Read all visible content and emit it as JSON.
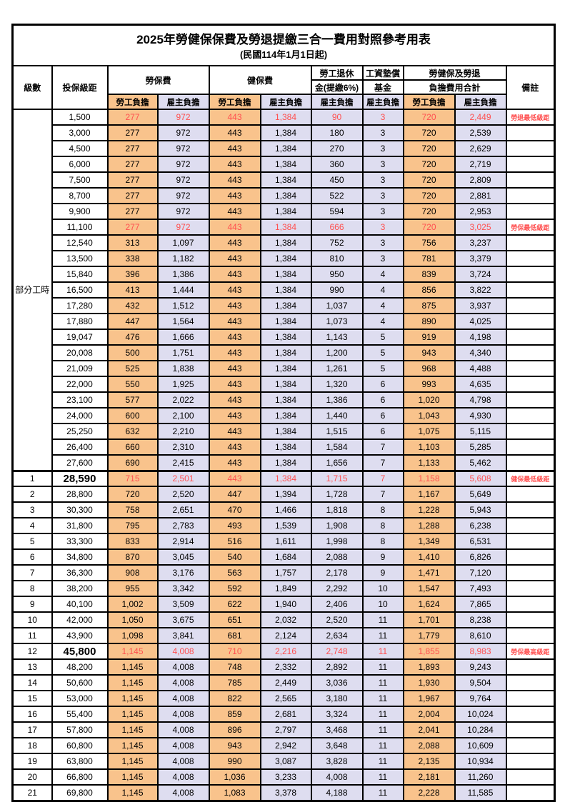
{
  "title": "2025年勞健保保費及勞退提繳三合一費用對照參考用表",
  "subtitle": "(民國114年1月1日起)",
  "columns": {
    "level": "級數",
    "bracket": "投保級距",
    "labor_insurance": "勞保費",
    "health_insurance": "健保費",
    "pension_line1": "勞工退休",
    "pension_line2": "金(提繳6%)",
    "fund_line1": "工資墊償",
    "fund_line2": "基金",
    "total_line1": "勞健保及勞退",
    "total_line2": "負擔費用合計",
    "remark": "備註",
    "employee": "勞工負擔",
    "employer": "雇主負擔"
  },
  "part_time_label": "部分工時",
  "colors": {
    "employee_bg": "#F9C38C",
    "employer_bg": "#DEDDF0",
    "highlight_red": "#FF5050"
  },
  "rows": [
    {
      "level": "",
      "bracket": "1,500",
      "li_emp": "277",
      "li_er": "972",
      "hi_emp": "443",
      "hi_er": "1,384",
      "pension": "90",
      "fund": "3",
      "tot_emp": "720",
      "tot_er": "2,449",
      "remark": "勞退最低級距",
      "red": true
    },
    {
      "level": "",
      "bracket": "3,000",
      "li_emp": "277",
      "li_er": "972",
      "hi_emp": "443",
      "hi_er": "1,384",
      "pension": "180",
      "fund": "3",
      "tot_emp": "720",
      "tot_er": "2,539",
      "remark": ""
    },
    {
      "level": "",
      "bracket": "4,500",
      "li_emp": "277",
      "li_er": "972",
      "hi_emp": "443",
      "hi_er": "1,384",
      "pension": "270",
      "fund": "3",
      "tot_emp": "720",
      "tot_er": "2,629",
      "remark": ""
    },
    {
      "level": "",
      "bracket": "6,000",
      "li_emp": "277",
      "li_er": "972",
      "hi_emp": "443",
      "hi_er": "1,384",
      "pension": "360",
      "fund": "3",
      "tot_emp": "720",
      "tot_er": "2,719",
      "remark": ""
    },
    {
      "level": "",
      "bracket": "7,500",
      "li_emp": "277",
      "li_er": "972",
      "hi_emp": "443",
      "hi_er": "1,384",
      "pension": "450",
      "fund": "3",
      "tot_emp": "720",
      "tot_er": "2,809",
      "remark": ""
    },
    {
      "level": "",
      "bracket": "8,700",
      "li_emp": "277",
      "li_er": "972",
      "hi_emp": "443",
      "hi_er": "1,384",
      "pension": "522",
      "fund": "3",
      "tot_emp": "720",
      "tot_er": "2,881",
      "remark": ""
    },
    {
      "level": "",
      "bracket": "9,900",
      "li_emp": "277",
      "li_er": "972",
      "hi_emp": "443",
      "hi_er": "1,384",
      "pension": "594",
      "fund": "3",
      "tot_emp": "720",
      "tot_er": "2,953",
      "remark": ""
    },
    {
      "level": "",
      "bracket": "11,100",
      "li_emp": "277",
      "li_er": "972",
      "hi_emp": "443",
      "hi_er": "1,384",
      "pension": "666",
      "fund": "3",
      "tot_emp": "720",
      "tot_er": "3,025",
      "remark": "勞保最低級距",
      "red": true
    },
    {
      "level": "",
      "bracket": "12,540",
      "li_emp": "313",
      "li_er": "1,097",
      "hi_emp": "443",
      "hi_er": "1,384",
      "pension": "752",
      "fund": "3",
      "tot_emp": "756",
      "tot_er": "3,237",
      "remark": ""
    },
    {
      "level": "",
      "bracket": "13,500",
      "li_emp": "338",
      "li_er": "1,182",
      "hi_emp": "443",
      "hi_er": "1,384",
      "pension": "810",
      "fund": "3",
      "tot_emp": "781",
      "tot_er": "3,379",
      "remark": ""
    },
    {
      "level": "",
      "bracket": "15,840",
      "li_emp": "396",
      "li_er": "1,386",
      "hi_emp": "443",
      "hi_er": "1,384",
      "pension": "950",
      "fund": "4",
      "tot_emp": "839",
      "tot_er": "3,724",
      "remark": ""
    },
    {
      "level": "",
      "bracket": "16,500",
      "li_emp": "413",
      "li_er": "1,444",
      "hi_emp": "443",
      "hi_er": "1,384",
      "pension": "990",
      "fund": "4",
      "tot_emp": "856",
      "tot_er": "3,822",
      "remark": ""
    },
    {
      "level": "",
      "bracket": "17,280",
      "li_emp": "432",
      "li_er": "1,512",
      "hi_emp": "443",
      "hi_er": "1,384",
      "pension": "1,037",
      "fund": "4",
      "tot_emp": "875",
      "tot_er": "3,937",
      "remark": ""
    },
    {
      "level": "",
      "bracket": "17,880",
      "li_emp": "447",
      "li_er": "1,564",
      "hi_emp": "443",
      "hi_er": "1,384",
      "pension": "1,073",
      "fund": "4",
      "tot_emp": "890",
      "tot_er": "4,025",
      "remark": ""
    },
    {
      "level": "",
      "bracket": "19,047",
      "li_emp": "476",
      "li_er": "1,666",
      "hi_emp": "443",
      "hi_er": "1,384",
      "pension": "1,143",
      "fund": "5",
      "tot_emp": "919",
      "tot_er": "4,198",
      "remark": ""
    },
    {
      "level": "",
      "bracket": "20,008",
      "li_emp": "500",
      "li_er": "1,751",
      "hi_emp": "443",
      "hi_er": "1,384",
      "pension": "1,200",
      "fund": "5",
      "tot_emp": "943",
      "tot_er": "4,340",
      "remark": ""
    },
    {
      "level": "",
      "bracket": "21,009",
      "li_emp": "525",
      "li_er": "1,838",
      "hi_emp": "443",
      "hi_er": "1,384",
      "pension": "1,261",
      "fund": "5",
      "tot_emp": "968",
      "tot_er": "4,488",
      "remark": ""
    },
    {
      "level": "",
      "bracket": "22,000",
      "li_emp": "550",
      "li_er": "1,925",
      "hi_emp": "443",
      "hi_er": "1,384",
      "pension": "1,320",
      "fund": "6",
      "tot_emp": "993",
      "tot_er": "4,635",
      "remark": ""
    },
    {
      "level": "",
      "bracket": "23,100",
      "li_emp": "577",
      "li_er": "2,022",
      "hi_emp": "443",
      "hi_er": "1,384",
      "pension": "1,386",
      "fund": "6",
      "tot_emp": "1,020",
      "tot_er": "4,798",
      "remark": ""
    },
    {
      "level": "",
      "bracket": "24,000",
      "li_emp": "600",
      "li_er": "2,100",
      "hi_emp": "443",
      "hi_er": "1,384",
      "pension": "1,440",
      "fund": "6",
      "tot_emp": "1,043",
      "tot_er": "4,930",
      "remark": ""
    },
    {
      "level": "",
      "bracket": "25,250",
      "li_emp": "632",
      "li_er": "2,210",
      "hi_emp": "443",
      "hi_er": "1,384",
      "pension": "1,515",
      "fund": "6",
      "tot_emp": "1,075",
      "tot_er": "5,115",
      "remark": ""
    },
    {
      "level": "",
      "bracket": "26,400",
      "li_emp": "660",
      "li_er": "2,310",
      "hi_emp": "443",
      "hi_er": "1,384",
      "pension": "1,584",
      "fund": "7",
      "tot_emp": "1,103",
      "tot_er": "5,285",
      "remark": ""
    },
    {
      "level": "",
      "bracket": "27,600",
      "li_emp": "690",
      "li_er": "2,415",
      "hi_emp": "443",
      "hi_er": "1,384",
      "pension": "1,656",
      "fund": "7",
      "tot_emp": "1,133",
      "tot_er": "5,462",
      "remark": ""
    },
    {
      "level": "1",
      "bracket": "28,590",
      "li_emp": "715",
      "li_er": "2,501",
      "hi_emp": "443",
      "hi_er": "1,384",
      "pension": "1,715",
      "fund": "7",
      "tot_emp": "1,158",
      "tot_er": "5,608",
      "remark": "健保最低級距",
      "red": true,
      "big": true,
      "section": true
    },
    {
      "level": "2",
      "bracket": "28,800",
      "li_emp": "720",
      "li_er": "2,520",
      "hi_emp": "447",
      "hi_er": "1,394",
      "pension": "1,728",
      "fund": "7",
      "tot_emp": "1,167",
      "tot_er": "5,649",
      "remark": ""
    },
    {
      "level": "3",
      "bracket": "30,300",
      "li_emp": "758",
      "li_er": "2,651",
      "hi_emp": "470",
      "hi_er": "1,466",
      "pension": "1,818",
      "fund": "8",
      "tot_emp": "1,228",
      "tot_er": "5,943",
      "remark": ""
    },
    {
      "level": "4",
      "bracket": "31,800",
      "li_emp": "795",
      "li_er": "2,783",
      "hi_emp": "493",
      "hi_er": "1,539",
      "pension": "1,908",
      "fund": "8",
      "tot_emp": "1,288",
      "tot_er": "6,238",
      "remark": ""
    },
    {
      "level": "5",
      "bracket": "33,300",
      "li_emp": "833",
      "li_er": "2,914",
      "hi_emp": "516",
      "hi_er": "1,611",
      "pension": "1,998",
      "fund": "8",
      "tot_emp": "1,349",
      "tot_er": "6,531",
      "remark": ""
    },
    {
      "level": "6",
      "bracket": "34,800",
      "li_emp": "870",
      "li_er": "3,045",
      "hi_emp": "540",
      "hi_er": "1,684",
      "pension": "2,088",
      "fund": "9",
      "tot_emp": "1,410",
      "tot_er": "6,826",
      "remark": ""
    },
    {
      "level": "7",
      "bracket": "36,300",
      "li_emp": "908",
      "li_er": "3,176",
      "hi_emp": "563",
      "hi_er": "1,757",
      "pension": "2,178",
      "fund": "9",
      "tot_emp": "1,471",
      "tot_er": "7,120",
      "remark": ""
    },
    {
      "level": "8",
      "bracket": "38,200",
      "li_emp": "955",
      "li_er": "3,342",
      "hi_emp": "592",
      "hi_er": "1,849",
      "pension": "2,292",
      "fund": "10",
      "tot_emp": "1,547",
      "tot_er": "7,493",
      "remark": ""
    },
    {
      "level": "9",
      "bracket": "40,100",
      "li_emp": "1,002",
      "li_er": "3,509",
      "hi_emp": "622",
      "hi_er": "1,940",
      "pension": "2,406",
      "fund": "10",
      "tot_emp": "1,624",
      "tot_er": "7,865",
      "remark": ""
    },
    {
      "level": "10",
      "bracket": "42,000",
      "li_emp": "1,050",
      "li_er": "3,675",
      "hi_emp": "651",
      "hi_er": "2,032",
      "pension": "2,520",
      "fund": "11",
      "tot_emp": "1,701",
      "tot_er": "8,238",
      "remark": ""
    },
    {
      "level": "11",
      "bracket": "43,900",
      "li_emp": "1,098",
      "li_er": "3,841",
      "hi_emp": "681",
      "hi_er": "2,124",
      "pension": "2,634",
      "fund": "11",
      "tot_emp": "1,779",
      "tot_er": "8,610",
      "remark": ""
    },
    {
      "level": "12",
      "bracket": "45,800",
      "li_emp": "1,145",
      "li_er": "4,008",
      "hi_emp": "710",
      "hi_er": "2,216",
      "pension": "2,748",
      "fund": "11",
      "tot_emp": "1,855",
      "tot_er": "8,983",
      "remark": "勞保最高級距",
      "red": true,
      "big": true
    },
    {
      "level": "13",
      "bracket": "48,200",
      "li_emp": "1,145",
      "li_er": "4,008",
      "hi_emp": "748",
      "hi_er": "2,332",
      "pension": "2,892",
      "fund": "11",
      "tot_emp": "1,893",
      "tot_er": "9,243",
      "remark": ""
    },
    {
      "level": "14",
      "bracket": "50,600",
      "li_emp": "1,145",
      "li_er": "4,008",
      "hi_emp": "785",
      "hi_er": "2,449",
      "pension": "3,036",
      "fund": "11",
      "tot_emp": "1,930",
      "tot_er": "9,504",
      "remark": ""
    },
    {
      "level": "15",
      "bracket": "53,000",
      "li_emp": "1,145",
      "li_er": "4,008",
      "hi_emp": "822",
      "hi_er": "2,565",
      "pension": "3,180",
      "fund": "11",
      "tot_emp": "1,967",
      "tot_er": "9,764",
      "remark": ""
    },
    {
      "level": "16",
      "bracket": "55,400",
      "li_emp": "1,145",
      "li_er": "4,008",
      "hi_emp": "859",
      "hi_er": "2,681",
      "pension": "3,324",
      "fund": "11",
      "tot_emp": "2,004",
      "tot_er": "10,024",
      "remark": ""
    },
    {
      "level": "17",
      "bracket": "57,800",
      "li_emp": "1,145",
      "li_er": "4,008",
      "hi_emp": "896",
      "hi_er": "2,797",
      "pension": "3,468",
      "fund": "11",
      "tot_emp": "2,041",
      "tot_er": "10,284",
      "remark": ""
    },
    {
      "level": "18",
      "bracket": "60,800",
      "li_emp": "1,145",
      "li_er": "4,008",
      "hi_emp": "943",
      "hi_er": "2,942",
      "pension": "3,648",
      "fund": "11",
      "tot_emp": "2,088",
      "tot_er": "10,609",
      "remark": ""
    },
    {
      "level": "19",
      "bracket": "63,800",
      "li_emp": "1,145",
      "li_er": "4,008",
      "hi_emp": "990",
      "hi_er": "3,087",
      "pension": "3,828",
      "fund": "11",
      "tot_emp": "2,135",
      "tot_er": "10,934",
      "remark": ""
    },
    {
      "level": "20",
      "bracket": "66,800",
      "li_emp": "1,145",
      "li_er": "4,008",
      "hi_emp": "1,036",
      "hi_er": "3,233",
      "pension": "4,008",
      "fund": "11",
      "tot_emp": "2,181",
      "tot_er": "11,260",
      "remark": ""
    },
    {
      "level": "21",
      "bracket": "69,800",
      "li_emp": "1,145",
      "li_er": "4,008",
      "hi_emp": "1,083",
      "hi_er": "3,378",
      "pension": "4,188",
      "fund": "11",
      "tot_emp": "2,228",
      "tot_er": "11,585",
      "remark": ""
    }
  ]
}
